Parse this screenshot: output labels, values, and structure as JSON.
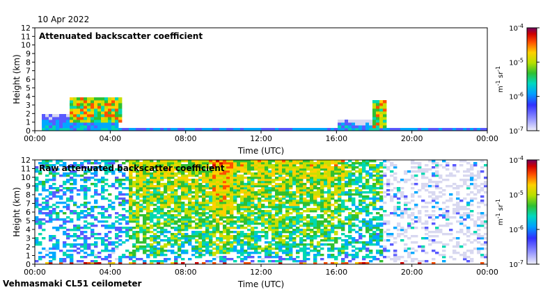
{
  "header": {
    "date": "10 Apr 2022"
  },
  "footer": {
    "instrument": "Vehmasmaki CL51 ceilometer"
  },
  "colors": {
    "scale": [
      "#d8d8f0",
      "#5a5aff",
      "#00a8ff",
      "#00d8b0",
      "#30c030",
      "#c8e000",
      "#ffd000",
      "#ff5000",
      "#d00000",
      "#800040"
    ]
  },
  "chart_data": [
    {
      "type": "heatmap",
      "title": "Attenuated backscatter coefficient",
      "xlabel": "Time (UTC)",
      "ylabel": "Height (km)",
      "x_ticks": [
        "00:00",
        "04:00",
        "08:00",
        "12:00",
        "16:00",
        "20:00",
        "00:00"
      ],
      "y_ticks": [
        "0",
        "1",
        "2",
        "3",
        "4",
        "5",
        "6",
        "7",
        "8",
        "9",
        "10",
        "11",
        "12"
      ],
      "xlim_hours": [
        0,
        24
      ],
      "ylim": [
        0,
        12
      ],
      "colorbar": {
        "unit": "m-1 sr-1",
        "ticks": [
          "10-7",
          "10-6",
          "10-5",
          "10-4"
        ],
        "scale": "log",
        "range": [
          1e-07,
          0.0001
        ]
      },
      "features": [
        {
          "name": "aerosol layer",
          "t_start": 0.3,
          "t_end": 4.5,
          "top_km": 1.8
        },
        {
          "name": "clouds",
          "t_start": 1.8,
          "t_end": 4.6,
          "base_km": 1.0,
          "top_km": 3.8
        },
        {
          "name": "boundary layer",
          "t_start": 4.5,
          "t_end": 24,
          "top_km": 0.3
        },
        {
          "name": "clouds",
          "t_start": 17.9,
          "t_end": 18.6,
          "base_km": 0.3,
          "top_km": 3.6
        },
        {
          "name": "aerosol layer",
          "t_start": 16.0,
          "t_end": 18.2,
          "top_km": 1.2
        }
      ]
    },
    {
      "type": "heatmap",
      "title": "Raw attenuated backscatter coefficient",
      "xlabel": "Time (UTC)",
      "ylabel": "Height (km)",
      "x_ticks": [
        "00:00",
        "04:00",
        "08:00",
        "12:00",
        "16:00",
        "20:00",
        "00:00"
      ],
      "y_ticks": [
        "0",
        "1",
        "2",
        "3",
        "4",
        "5",
        "6",
        "7",
        "8",
        "9",
        "10",
        "11",
        "12"
      ],
      "xlim_hours": [
        0,
        24
      ],
      "ylim": [
        0,
        12
      ],
      "colorbar": {
        "unit": "m-1 sr-1",
        "ticks": [
          "10-7",
          "10-6",
          "10-5",
          "10-4"
        ],
        "scale": "log",
        "range": [
          1e-07,
          0.0001
        ]
      }
    }
  ]
}
